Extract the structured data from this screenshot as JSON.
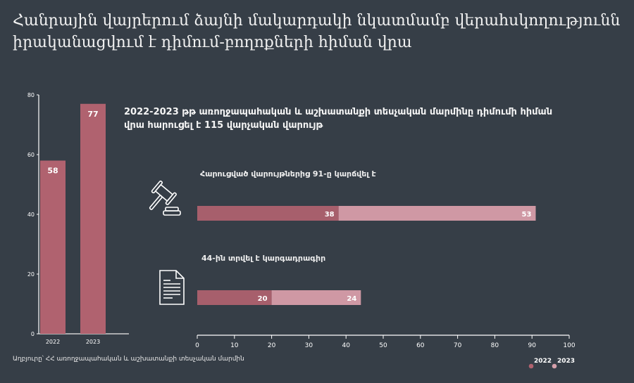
{
  "title": "Հանրային վայրերում ձայնի մակարդակի նկատմամբ վերահսկողությունն իրականացվում է դիմում-բողոքների հիման վրա",
  "subtitle": "2022-2023 թթ առողջապահական և աշխատանքի տեսչական մարմինը դիմումի հիման վրա հարուցել է 115 վարչական վարույթ",
  "row_labels": {
    "concluded": "Հարուցված վարույթներից 91-ը կարճվել է",
    "fined": "44-ին տրվել է կարգադրագիր"
  },
  "source": "Աղբյուրը՝ ՀՀ առողջապահական և աշխատանքի տեսչական մարմին",
  "legend": [
    {
      "label": "2022",
      "color": "#b0626f"
    },
    {
      "label": "2023",
      "color": "#d5a0ab"
    }
  ],
  "icons": {
    "concluded": "gavel-icon",
    "fined": "document-icon"
  },
  "colors": {
    "background": "#363e47",
    "bar_2022": "#a75f6c",
    "bar_2023": "#cf98a4",
    "vertical_bar": "#b0626f"
  },
  "chart_data": [
    {
      "type": "bar",
      "title": "",
      "categories": [
        "2022",
        "2023"
      ],
      "values": [
        58,
        77
      ],
      "xlabel": "",
      "ylabel": "",
      "ylim": [
        0,
        80
      ],
      "yticks": [
        0,
        20,
        40,
        60,
        80
      ],
      "grid": false
    },
    {
      "type": "bar",
      "orientation": "horizontal",
      "stacked": true,
      "categories": [
        "Հարուցված վարույթներից 91-ը կարճվել է",
        "44-ին տրվել է կարգադրագիր"
      ],
      "series": [
        {
          "name": "2022",
          "values": [
            38,
            20
          ]
        },
        {
          "name": "2023",
          "values": [
            53,
            24
          ]
        }
      ],
      "xlim": [
        0,
        100
      ],
      "xticks": [
        0,
        10,
        20,
        30,
        40,
        50,
        60,
        70,
        80,
        90,
        100
      ],
      "legend_position": "bottom-right",
      "grid": false
    }
  ]
}
